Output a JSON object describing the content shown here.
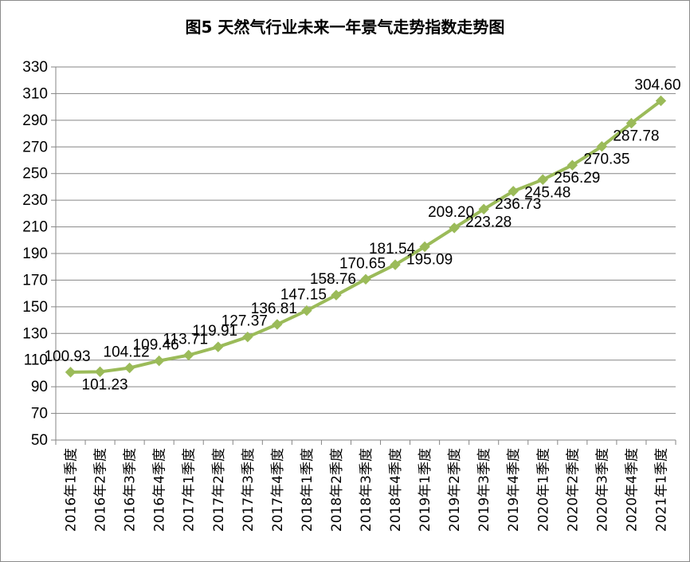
{
  "chart_data": {
    "type": "line",
    "title": "图5 天然气行业未来一年景气走势指数走势图",
    "xlabel": "",
    "ylabel": "",
    "ylim": [
      50,
      330
    ],
    "ystep": 20,
    "grid": true,
    "legend": "none",
    "line_color": "#9bbb59",
    "categories": [
      "2016年1季度",
      "2016年2季度",
      "2016年3季度",
      "2016年4季度",
      "2017年1季度",
      "2017年2季度",
      "2017年3季度",
      "2017年4季度",
      "2018年1季度",
      "2018年2季度",
      "2018年3季度",
      "2018年4季度",
      "2019年1季度",
      "2019年2季度",
      "2019年3季度",
      "2019年4季度",
      "2020年1季度",
      "2020年2季度",
      "2020年3季度",
      "2020年4季度",
      "2021年1季度"
    ],
    "values": [
      100.93,
      101.23,
      104.12,
      109.46,
      113.71,
      119.91,
      127.37,
      136.81,
      147.15,
      158.76,
      170.65,
      181.54,
      195.09,
      209.2,
      223.28,
      236.73,
      245.48,
      256.29,
      270.35,
      287.78,
      304.6
    ],
    "data_labels": [
      "100.93",
      "101.23",
      "104.12",
      "109.46",
      "113.71",
      "119.91",
      "127.37",
      "136.81",
      "147.15",
      "158.76",
      "170.65",
      "181.54",
      "195.09",
      "209.20",
      "223.28",
      "236.73",
      "245.48",
      "256.29",
      "270.35",
      "287.78",
      "304.60"
    ]
  }
}
